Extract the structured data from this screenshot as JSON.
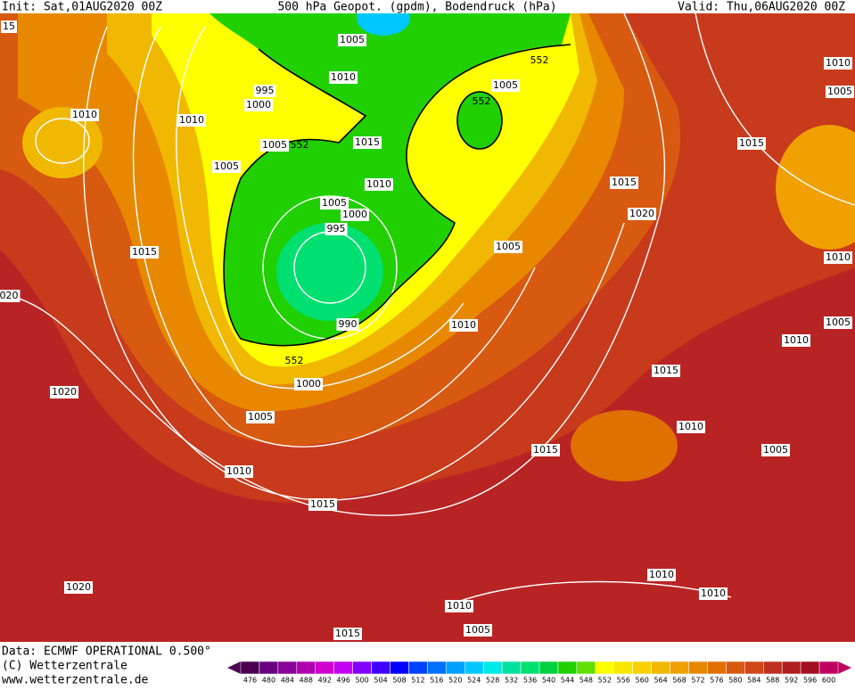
{
  "header": {
    "init": "Init: Sat,01AUG2020 00Z",
    "title": "500 hPa Geopot. (gpdm), Bodendruck (hPa)",
    "valid": "Valid: Thu,06AUG2020 00Z"
  },
  "map": {
    "isobar_labels": [
      "15",
      "1005",
      "1010",
      "995",
      "1000",
      "1010",
      "1010",
      "1005",
      "552",
      "552",
      "1005",
      "552",
      "1015",
      "1005",
      "1010",
      "1015",
      "1015",
      "1010",
      "1005",
      "1005",
      "1000",
      "1020",
      "995",
      "1005",
      "1015",
      "1010",
      "020",
      "1010",
      "990",
      "1005",
      "1010",
      "552",
      "1000",
      "1015",
      "1020",
      "1005",
      "1010",
      "1015",
      "1005",
      "1010",
      "1015",
      "1010",
      "1010",
      "1020",
      "1010",
      "1005",
      "1015"
    ]
  },
  "footer": {
    "data": "Data: ECMWF OPERATIONAL 0.500°",
    "copyright": "(C) Wetterzentrale",
    "url": "www.wetterzentrale.de"
  },
  "colorbar": {
    "levels": [
      476,
      480,
      484,
      488,
      492,
      496,
      500,
      504,
      508,
      512,
      516,
      520,
      524,
      528,
      532,
      536,
      540,
      544,
      548,
      552,
      556,
      560,
      564,
      568,
      572,
      576,
      580,
      584,
      588,
      592,
      596,
      600
    ],
    "colors": [
      "#4b0050",
      "#6a0080",
      "#8a009a",
      "#b000b0",
      "#d000d0",
      "#c000f0",
      "#8000ff",
      "#4000ff",
      "#0000ff",
      "#0040ff",
      "#0070ff",
      "#00a0ff",
      "#00c8ff",
      "#00e8e8",
      "#00e0a0",
      "#00e070",
      "#00d040",
      "#20d000",
      "#60e000",
      "#ffff00",
      "#f8e800",
      "#f8d000",
      "#f0b800",
      "#f0a000",
      "#e88800",
      "#e07000",
      "#d85a10",
      "#d04818",
      "#c03020",
      "#b02020",
      "#a01020",
      "#c00060"
    ]
  }
}
